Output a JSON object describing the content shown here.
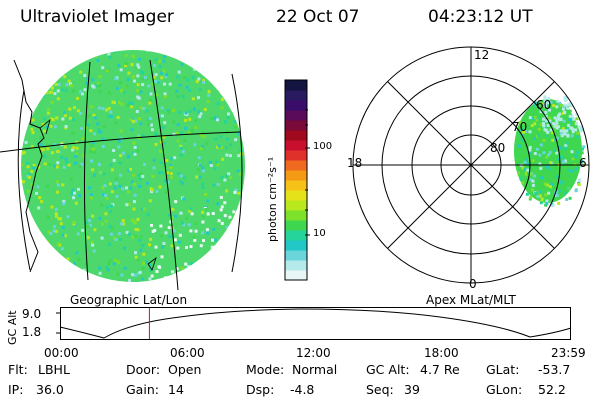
{
  "header": {
    "instrument": "Ultraviolet Imager",
    "date": "22 Oct 07",
    "time": "04:23:12 UT"
  },
  "colorbar": {
    "label": "photon cm⁻²s⁻¹",
    "ticks": [
      "100",
      "10"
    ],
    "colors": [
      "#141440",
      "#2a1b60",
      "#3b0d6a",
      "#5a0b5a",
      "#7a0a3a",
      "#a00a1e",
      "#c8102e",
      "#e0302a",
      "#ef6a1e",
      "#f59a14",
      "#f6c21a",
      "#e6e21a",
      "#b8e81e",
      "#7de02a",
      "#3fd650",
      "#24d49a",
      "#22c8c8",
      "#6ad6dc",
      "#b5eaea",
      "#e8f6f6"
    ]
  },
  "left_panel": {
    "label": "Geographic Lat/Lon"
  },
  "right_panel": {
    "label": "Apex MLat/MLT",
    "mlt_labels": [
      "12",
      "18",
      "6",
      "0"
    ],
    "lat_labels": [
      "60",
      "70",
      "80"
    ]
  },
  "orbit": {
    "y_axis_label": "GC Alt",
    "y_ticks": [
      "9.0",
      "1.8"
    ],
    "x_ticks": [
      "00:00",
      "06:00",
      "12:00",
      "18:00",
      "23:59"
    ],
    "current_time_fraction": 0.175
  },
  "info": {
    "flt_label": "Flt:",
    "flt_value": "LBHL",
    "ip_label": "IP:",
    "ip_value": "36.0",
    "door_label": "Door:",
    "door_value": "Open",
    "gain_label": "Gain:",
    "gain_value": "14",
    "mode_label": "Mode:",
    "mode_value": "Normal",
    "dsp_label": "Dsp:",
    "dsp_value": "-4.8",
    "gcalt_label": "GC Alt:",
    "gcalt_value": "4.7 Re",
    "seq_label": "Seq:",
    "seq_value": "39",
    "glat_label": "GLat:",
    "glat_value": "-53.7",
    "glon_label": "GLon:",
    "glon_value": "52.2"
  }
}
